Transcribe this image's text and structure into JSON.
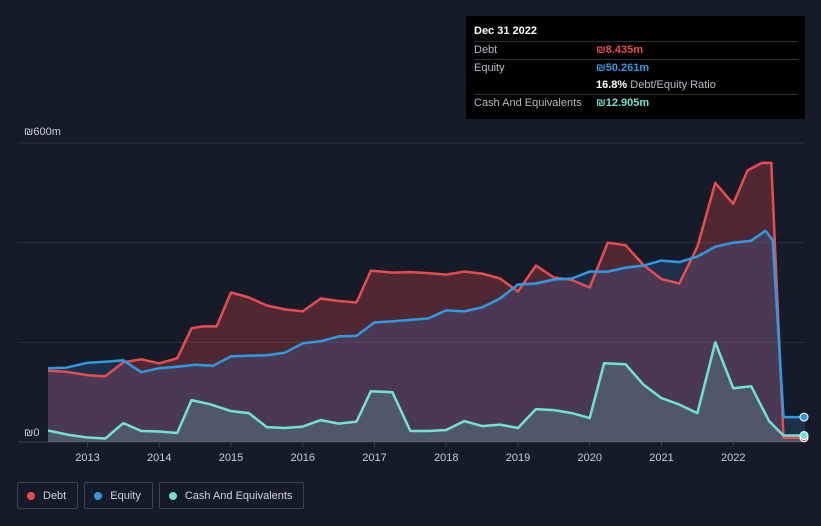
{
  "tooltip": {
    "date": "Dec 31 2022",
    "debt_label": "Debt",
    "debt_value": "₪8.435m",
    "equity_label": "Equity",
    "equity_value": "₪50.261m",
    "ratio_value": "16.8%",
    "ratio_label": "Debt/Equity Ratio",
    "cash_label": "Cash And Equivalents",
    "cash_value": "₪12.905m"
  },
  "legend": {
    "debt": "Debt",
    "equity": "Equity",
    "cash": "Cash And Equivalents"
  },
  "colors": {
    "background": "#151b28",
    "debt": "#e84c4f",
    "equity": "#2d9be4",
    "cash": "#6fe3d0",
    "grid": "#2a303c"
  },
  "chart_data": {
    "type": "area",
    "ylabel_top": "₪600m",
    "ylabel_bottom": "₪0",
    "ylim": [
      0,
      600
    ],
    "xlim": [
      2012.45,
      2023.0
    ],
    "x_ticks": [
      2013,
      2014,
      2015,
      2016,
      2017,
      2018,
      2019,
      2020,
      2021,
      2022
    ],
    "x_tick_labels": [
      "2013",
      "2014",
      "2015",
      "2016",
      "2017",
      "2018",
      "2019",
      "2020",
      "2021",
      "2022"
    ],
    "series": [
      {
        "name": "Debt",
        "points": [
          [
            2012.45,
            143
          ],
          [
            2012.7,
            141
          ],
          [
            2013.0,
            134
          ],
          [
            2013.25,
            132
          ],
          [
            2013.5,
            160
          ],
          [
            2013.75,
            166
          ],
          [
            2014.0,
            158
          ],
          [
            2014.25,
            168
          ],
          [
            2014.45,
            228
          ],
          [
            2014.6,
            232
          ],
          [
            2014.8,
            232
          ],
          [
            2015.0,
            300
          ],
          [
            2015.25,
            290
          ],
          [
            2015.5,
            274
          ],
          [
            2015.75,
            266
          ],
          [
            2016.0,
            262
          ],
          [
            2016.25,
            288
          ],
          [
            2016.5,
            283
          ],
          [
            2016.75,
            280
          ],
          [
            2016.95,
            344
          ],
          [
            2017.25,
            340
          ],
          [
            2017.5,
            341
          ],
          [
            2017.75,
            339
          ],
          [
            2018.0,
            336
          ],
          [
            2018.25,
            342
          ],
          [
            2018.5,
            338
          ],
          [
            2018.75,
            328
          ],
          [
            2019.0,
            302
          ],
          [
            2019.25,
            354
          ],
          [
            2019.5,
            330
          ],
          [
            2019.75,
            325
          ],
          [
            2020.0,
            310
          ],
          [
            2020.25,
            400
          ],
          [
            2020.5,
            395
          ],
          [
            2020.75,
            355
          ],
          [
            2021.0,
            327
          ],
          [
            2021.25,
            318
          ],
          [
            2021.5,
            392
          ],
          [
            2021.75,
            520
          ],
          [
            2022.0,
            478
          ],
          [
            2022.2,
            545
          ],
          [
            2022.4,
            560
          ],
          [
            2022.53,
            560
          ],
          [
            2022.7,
            8.5
          ],
          [
            2023.0,
            8.5
          ]
        ]
      },
      {
        "name": "Equity",
        "points": [
          [
            2012.45,
            148
          ],
          [
            2012.7,
            149
          ],
          [
            2013.0,
            159
          ],
          [
            2013.25,
            161
          ],
          [
            2013.5,
            164
          ],
          [
            2013.75,
            140
          ],
          [
            2014.0,
            148
          ],
          [
            2014.25,
            151
          ],
          [
            2014.5,
            155
          ],
          [
            2014.75,
            153
          ],
          [
            2015.0,
            172
          ],
          [
            2015.25,
            173
          ],
          [
            2015.5,
            174
          ],
          [
            2015.75,
            179
          ],
          [
            2016.0,
            198
          ],
          [
            2016.25,
            202
          ],
          [
            2016.5,
            212
          ],
          [
            2016.75,
            213
          ],
          [
            2017.0,
            240
          ],
          [
            2017.25,
            242
          ],
          [
            2017.5,
            245
          ],
          [
            2017.75,
            248
          ],
          [
            2018.0,
            264
          ],
          [
            2018.25,
            262
          ],
          [
            2018.5,
            270
          ],
          [
            2018.75,
            288
          ],
          [
            2019.0,
            316
          ],
          [
            2019.25,
            318
          ],
          [
            2019.5,
            326
          ],
          [
            2019.75,
            328
          ],
          [
            2020.0,
            342
          ],
          [
            2020.25,
            342
          ],
          [
            2020.5,
            350
          ],
          [
            2020.75,
            354
          ],
          [
            2021.0,
            364
          ],
          [
            2021.25,
            361
          ],
          [
            2021.5,
            372
          ],
          [
            2021.75,
            392
          ],
          [
            2022.0,
            400
          ],
          [
            2022.25,
            404
          ],
          [
            2022.45,
            424
          ],
          [
            2022.55,
            405
          ],
          [
            2022.7,
            50
          ],
          [
            2023.0,
            50
          ]
        ]
      },
      {
        "name": "Cash And Equivalents",
        "points": [
          [
            2012.45,
            23
          ],
          [
            2012.75,
            14
          ],
          [
            2013.0,
            9
          ],
          [
            2013.25,
            7
          ],
          [
            2013.5,
            38
          ],
          [
            2013.75,
            22
          ],
          [
            2014.0,
            21
          ],
          [
            2014.25,
            18
          ],
          [
            2014.45,
            84
          ],
          [
            2014.7,
            76
          ],
          [
            2015.0,
            62
          ],
          [
            2015.25,
            58
          ],
          [
            2015.5,
            30
          ],
          [
            2015.75,
            28
          ],
          [
            2016.0,
            31
          ],
          [
            2016.25,
            44
          ],
          [
            2016.5,
            37
          ],
          [
            2016.75,
            41
          ],
          [
            2016.95,
            102
          ],
          [
            2017.25,
            100
          ],
          [
            2017.5,
            22
          ],
          [
            2017.75,
            22
          ],
          [
            2018.0,
            24
          ],
          [
            2018.25,
            42
          ],
          [
            2018.5,
            32
          ],
          [
            2018.75,
            35
          ],
          [
            2019.0,
            28
          ],
          [
            2019.25,
            66
          ],
          [
            2019.5,
            64
          ],
          [
            2019.75,
            58
          ],
          [
            2020.0,
            48
          ],
          [
            2020.2,
            158
          ],
          [
            2020.5,
            156
          ],
          [
            2020.75,
            115
          ],
          [
            2021.0,
            88
          ],
          [
            2021.25,
            75
          ],
          [
            2021.5,
            58
          ],
          [
            2021.75,
            200
          ],
          [
            2022.0,
            108
          ],
          [
            2022.25,
            112
          ],
          [
            2022.5,
            42
          ],
          [
            2022.7,
            13
          ],
          [
            2023.0,
            13
          ]
        ]
      }
    ]
  }
}
